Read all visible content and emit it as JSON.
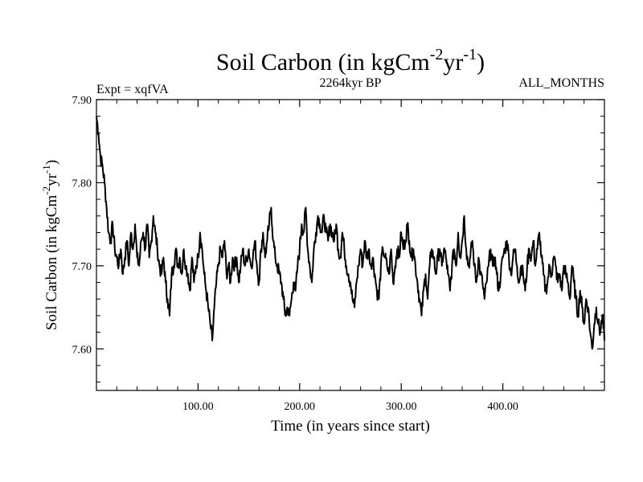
{
  "chart_data": {
    "type": "line",
    "title": {
      "main": "Soil Carbon (in kgCm",
      "sup1": "-2",
      "mid": "yr",
      "sup2": "-1",
      "end": ")"
    },
    "subtitle_left": "Expt = xqfVA",
    "subtitle_center": "2264kyr BP",
    "subtitle_right": "ALL_MONTHS",
    "xlabel": "Time (in years since start)",
    "ylabel": {
      "main": "Soil Carbon (in kgCm",
      "sup1": "-2",
      "mid": "yr",
      "sup2": "-1",
      "end": ")"
    },
    "xlim": [
      0,
      500
    ],
    "ylim": [
      7.55,
      7.9
    ],
    "x_ticks": [
      {
        "value": 100,
        "label": "100.00"
      },
      {
        "value": 200,
        "label": "200.00"
      },
      {
        "value": 300,
        "label": "300.00"
      },
      {
        "value": 400,
        "label": "400.00"
      }
    ],
    "y_ticks": [
      {
        "value": 7.6,
        "label": "7.60"
      },
      {
        "value": 7.7,
        "label": "7.70"
      },
      {
        "value": 7.8,
        "label": "7.80"
      },
      {
        "value": 7.9,
        "label": "7.90"
      }
    ],
    "grid": false,
    "series": [
      {
        "name": "Soil Carbon",
        "color": "#000000",
        "x": [
          0,
          2,
          4,
          6,
          8,
          10,
          12,
          14,
          16,
          18,
          20,
          22,
          24,
          26,
          28,
          30,
          32,
          34,
          36,
          38,
          40,
          42,
          44,
          46,
          48,
          50,
          52,
          54,
          56,
          58,
          60,
          62,
          64,
          66,
          68,
          70,
          72,
          74,
          76,
          78,
          80,
          82,
          84,
          86,
          88,
          90,
          92,
          94,
          96,
          98,
          100,
          102,
          104,
          106,
          108,
          110,
          112,
          114,
          116,
          118,
          120,
          122,
          124,
          126,
          128,
          130,
          132,
          134,
          136,
          138,
          140,
          142,
          144,
          146,
          148,
          150,
          152,
          154,
          156,
          158,
          160,
          162,
          164,
          166,
          168,
          170,
          172,
          174,
          176,
          178,
          180,
          182,
          184,
          186,
          188,
          190,
          192,
          194,
          196,
          198,
          200,
          202,
          204,
          206,
          208,
          210,
          212,
          214,
          216,
          218,
          220,
          222,
          224,
          226,
          228,
          230,
          232,
          234,
          236,
          238,
          240,
          242,
          244,
          246,
          248,
          250,
          252,
          254,
          256,
          258,
          260,
          262,
          264,
          266,
          268,
          270,
          272,
          274,
          276,
          278,
          280,
          282,
          284,
          286,
          288,
          290,
          292,
          294,
          296,
          298,
          300,
          302,
          304,
          306,
          308,
          310,
          312,
          314,
          316,
          318,
          320,
          322,
          324,
          326,
          328,
          330,
          332,
          334,
          336,
          338,
          340,
          342,
          344,
          346,
          348,
          350,
          352,
          354,
          356,
          358,
          360,
          362,
          364,
          366,
          368,
          370,
          372,
          374,
          376,
          378,
          380,
          382,
          384,
          386,
          388,
          390,
          392,
          394,
          396,
          398,
          400,
          402,
          404,
          406,
          408,
          410,
          412,
          414,
          416,
          418,
          420,
          422,
          424,
          426,
          428,
          430,
          432,
          434,
          436,
          438,
          440,
          442,
          444,
          446,
          448,
          450,
          452,
          454,
          456,
          458,
          460,
          462,
          464,
          466,
          468,
          470,
          472,
          474,
          476,
          478,
          480,
          482,
          484,
          486,
          488,
          490,
          492,
          494,
          496,
          498,
          500
        ],
        "y": [
          7.88,
          7.86,
          7.83,
          7.82,
          7.8,
          7.77,
          7.74,
          7.73,
          7.75,
          7.72,
          7.71,
          7.7,
          7.72,
          7.69,
          7.71,
          7.73,
          7.7,
          7.74,
          7.72,
          7.75,
          7.71,
          7.7,
          7.73,
          7.74,
          7.72,
          7.75,
          7.71,
          7.73,
          7.76,
          7.74,
          7.72,
          7.7,
          7.69,
          7.71,
          7.68,
          7.66,
          7.64,
          7.69,
          7.7,
          7.72,
          7.7,
          7.71,
          7.69,
          7.72,
          7.7,
          7.69,
          7.67,
          7.71,
          7.68,
          7.7,
          7.71,
          7.74,
          7.72,
          7.69,
          7.67,
          7.65,
          7.63,
          7.61,
          7.65,
          7.68,
          7.7,
          7.72,
          7.71,
          7.73,
          7.69,
          7.7,
          7.68,
          7.71,
          7.7,
          7.71,
          7.68,
          7.7,
          7.72,
          7.7,
          7.71,
          7.72,
          7.7,
          7.71,
          7.73,
          7.7,
          7.68,
          7.72,
          7.74,
          7.71,
          7.73,
          7.75,
          7.77,
          7.73,
          7.71,
          7.7,
          7.69,
          7.68,
          7.66,
          7.64,
          7.65,
          7.64,
          7.66,
          7.68,
          7.67,
          7.7,
          7.72,
          7.75,
          7.74,
          7.77,
          7.72,
          7.7,
          7.68,
          7.72,
          7.74,
          7.76,
          7.75,
          7.74,
          7.76,
          7.74,
          7.73,
          7.75,
          7.74,
          7.73,
          7.75,
          7.72,
          7.71,
          7.74,
          7.72,
          7.7,
          7.69,
          7.68,
          7.66,
          7.65,
          7.68,
          7.7,
          7.72,
          7.7,
          7.73,
          7.71,
          7.72,
          7.7,
          7.71,
          7.69,
          7.67,
          7.66,
          7.7,
          7.72,
          7.71,
          7.7,
          7.69,
          7.72,
          7.68,
          7.7,
          7.72,
          7.71,
          7.74,
          7.72,
          7.73,
          7.75,
          7.73,
          7.71,
          7.72,
          7.7,
          7.68,
          7.66,
          7.64,
          7.67,
          7.69,
          7.66,
          7.7,
          7.72,
          7.71,
          7.69,
          7.71,
          7.72,
          7.7,
          7.72,
          7.71,
          7.69,
          7.67,
          7.7,
          7.72,
          7.7,
          7.74,
          7.71,
          7.73,
          7.76,
          7.72,
          7.7,
          7.71,
          7.73,
          7.7,
          7.68,
          7.71,
          7.69,
          7.68,
          7.66,
          7.68,
          7.7,
          7.72,
          7.7,
          7.71,
          7.69,
          7.67,
          7.69,
          7.71,
          7.72,
          7.73,
          7.71,
          7.69,
          7.71,
          7.72,
          7.7,
          7.68,
          7.7,
          7.69,
          7.67,
          7.7,
          7.72,
          7.71,
          7.73,
          7.7,
          7.72,
          7.74,
          7.71,
          7.69,
          7.67,
          7.68,
          7.7,
          7.69,
          7.71,
          7.7,
          7.68,
          7.69,
          7.67,
          7.7,
          7.69,
          7.68,
          7.66,
          7.7,
          7.68,
          7.66,
          7.64,
          7.67,
          7.65,
          7.63,
          7.66,
          7.65,
          7.62,
          7.6,
          7.63,
          7.65,
          7.63,
          7.62,
          7.64,
          7.61
        ]
      }
    ]
  }
}
